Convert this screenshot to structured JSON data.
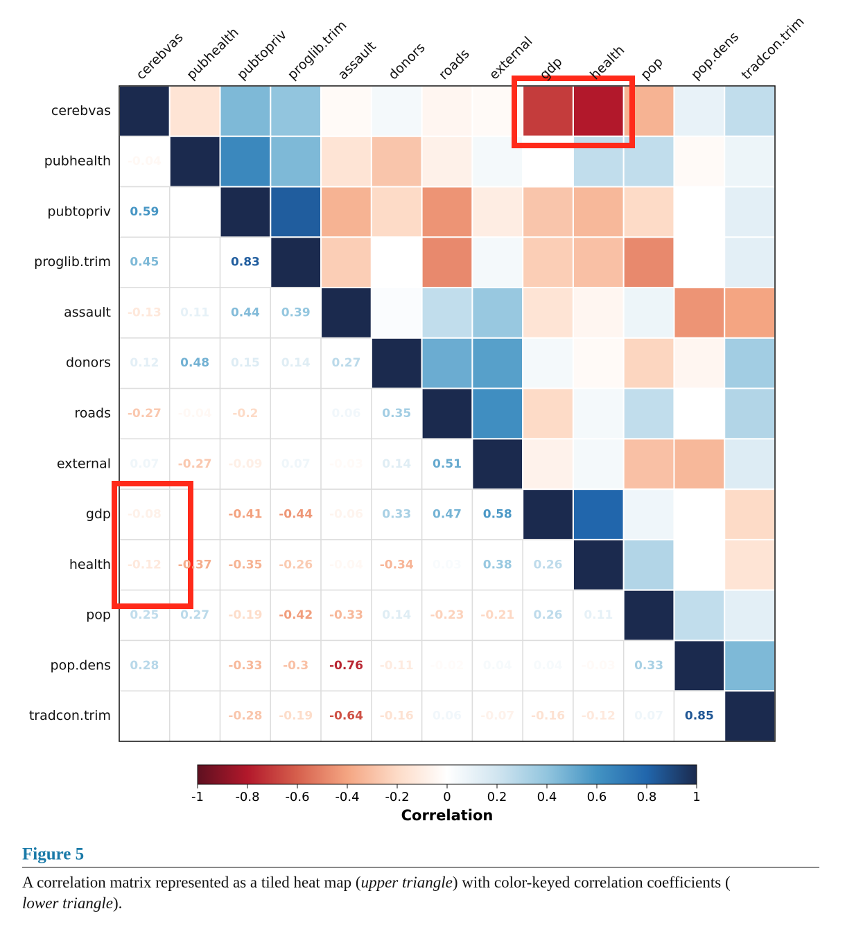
{
  "chart_data": {
    "type": "correlogram",
    "variables": [
      "cerebvas",
      "pubhealth",
      "pubtopriv",
      "proglib.trim",
      "assault",
      "donors",
      "roads",
      "external",
      "gdp",
      "health",
      "pop",
      "pop.dens",
      "tradcon.trim"
    ],
    "values": [
      [
        1,
        -0.15,
        0.45,
        0.4,
        -0.03,
        0.05,
        -0.05,
        -0.03,
        -0.7,
        -0.8,
        -0.35,
        0.1,
        0.25
      ],
      [
        -0.04,
        1,
        0.65,
        0.45,
        -0.15,
        -0.28,
        -0.08,
        0.05,
        0,
        0.25,
        0.25,
        -0.03,
        0.08
      ],
      [
        0.59,
        null,
        1,
        0.83,
        -0.35,
        -0.2,
        -0.45,
        -0.1,
        -0.28,
        -0.33,
        -0.2,
        0,
        0.12
      ],
      [
        0.45,
        null,
        0.83,
        1,
        -0.25,
        0,
        -0.48,
        0.05,
        -0.25,
        -0.3,
        -0.48,
        0,
        0.12
      ],
      [
        -0.13,
        0.11,
        0.44,
        0.39,
        1,
        0.02,
        0.25,
        0.38,
        -0.15,
        -0.05,
        0.08,
        -0.45,
        -0.4
      ],
      [
        0.12,
        0.48,
        0.15,
        0.14,
        0.27,
        1,
        0.5,
        0.55,
        0.05,
        -0.03,
        -0.22,
        -0.05,
        0.35
      ],
      [
        -0.27,
        -0.04,
        -0.2,
        null,
        0.06,
        0.35,
        1,
        0.62,
        -0.2,
        0.05,
        0.25,
        0,
        0.3
      ],
      [
        0.07,
        -0.27,
        -0.09,
        0.07,
        -0.03,
        0.14,
        0.51,
        1,
        -0.07,
        0.05,
        -0.3,
        -0.33,
        0.15
      ],
      [
        -0.08,
        null,
        -0.41,
        -0.44,
        -0.06,
        0.33,
        0.47,
        0.58,
        1,
        0.8,
        0.07,
        0,
        -0.2
      ],
      [
        -0.12,
        -0.37,
        -0.35,
        -0.26,
        -0.04,
        -0.34,
        0.03,
        0.38,
        0.26,
        1,
        0.3,
        0,
        -0.15
      ],
      [
        0.25,
        0.27,
        -0.19,
        -0.42,
        -0.33,
        0.14,
        -0.23,
        -0.21,
        0.26,
        0.11,
        1,
        0.25,
        0.12
      ],
      [
        0.28,
        null,
        -0.33,
        -0.3,
        -0.76,
        -0.11,
        -0.02,
        0.04,
        0.04,
        -0.03,
        0.33,
        1,
        0.45
      ],
      [
        null,
        null,
        -0.28,
        -0.19,
        -0.64,
        -0.16,
        0.06,
        -0.07,
        -0.16,
        -0.12,
        0.07,
        0.85,
        1
      ]
    ],
    "colormap": [
      "#5e1020",
      "#b2182b",
      "#d6604d",
      "#f4a582",
      "#fddbc7",
      "#ffffff",
      "#d1e5f0",
      "#92c5de",
      "#4393c3",
      "#2166ac",
      "#1b2a4e"
    ],
    "colorbar": {
      "label": "Correlation",
      "lim": [
        -1,
        1
      ],
      "ticks": [
        -1,
        -0.8,
        -0.6,
        -0.4,
        -0.2,
        0,
        0.2,
        0.4,
        0.6,
        0.8,
        1
      ]
    }
  },
  "figure": {
    "label": "Figure 5",
    "caption": [
      "A correlation matrix represented as a tiled heat map (",
      "upper triangle",
      ") with color-keyed correlation coefficients (",
      "lower triangle",
      ")."
    ]
  }
}
